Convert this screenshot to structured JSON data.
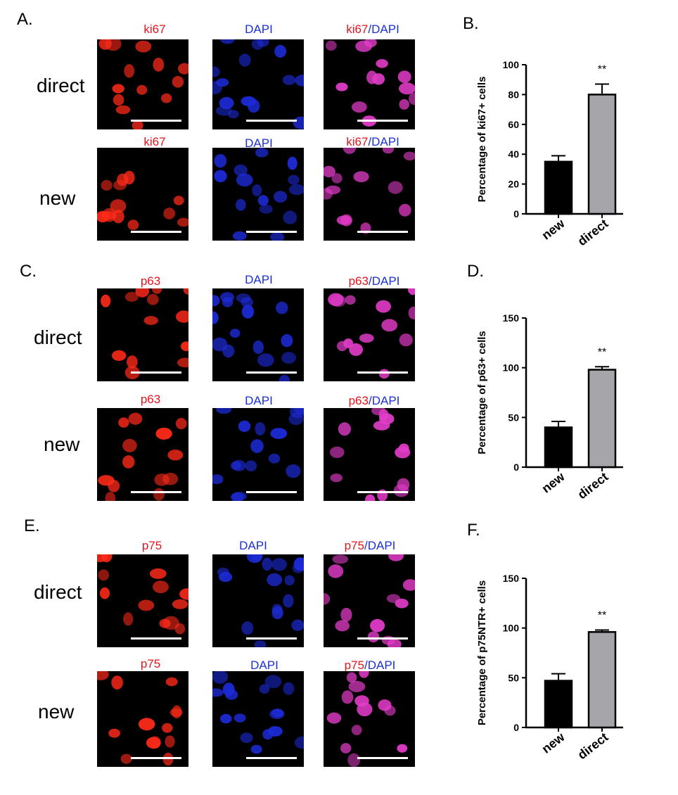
{
  "panels": {
    "A": "A.",
    "B": "B.",
    "C": "C.",
    "D": "D.",
    "E": "E.",
    "F": "F."
  },
  "rows": {
    "direct": "direct",
    "new": "new"
  },
  "stains": {
    "ki67": "ki67",
    "p63": "p63",
    "p75": "p75",
    "dapi": "DAPI",
    "slash": "/"
  },
  "colors": {
    "red_text": "#e8141d",
    "blue_text": "#1a2fd6",
    "bar_new": "#000000",
    "bar_direct": "#a6a6aa"
  },
  "chart_data": [
    {
      "type": "bar",
      "panel": "B.",
      "categories": [
        "new",
        "direct"
      ],
      "values": [
        35,
        80
      ],
      "errors": [
        4,
        7
      ],
      "ylabel": "Percentage of ki67+ cells",
      "ylim": [
        0,
        100
      ],
      "yticks": [
        0,
        20,
        40,
        60,
        80,
        100
      ],
      "significance": "**",
      "grid": false
    },
    {
      "type": "bar",
      "panel": "D.",
      "categories": [
        "new",
        "direct"
      ],
      "values": [
        40,
        98
      ],
      "errors": [
        6,
        3
      ],
      "ylabel": "Percentage of p63+ cells",
      "ylim": [
        0,
        150
      ],
      "yticks": [
        0,
        50,
        100,
        150
      ],
      "significance": "**",
      "grid": false
    },
    {
      "type": "bar",
      "panel": "F.",
      "categories": [
        "new",
        "direct"
      ],
      "values": [
        47,
        96
      ],
      "errors": [
        7,
        2
      ],
      "ylabel": "Percentage of p75NTR+ cells",
      "ylim": [
        0,
        150
      ],
      "yticks": [
        0,
        50,
        100,
        150
      ],
      "significance": "**",
      "grid": false
    }
  ]
}
